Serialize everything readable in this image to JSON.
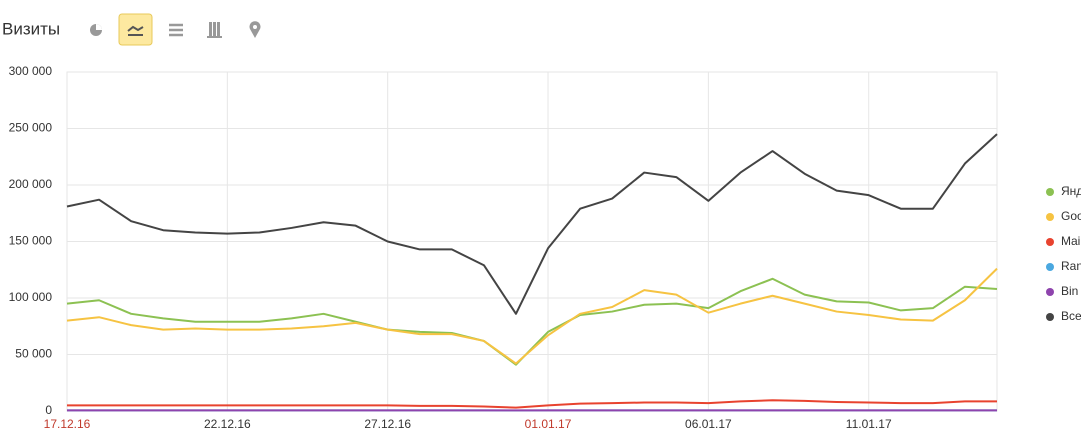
{
  "chart_data": {
    "type": "line",
    "title": "Визиты",
    "categories": [
      "17.12.16",
      null,
      null,
      null,
      null,
      "22.12.16",
      null,
      null,
      null,
      null,
      "27.12.16",
      null,
      null,
      null,
      null,
      "01.01.17",
      null,
      null,
      null,
      null,
      "06.01.17",
      null,
      null,
      null,
      null,
      "11.01.17",
      null,
      null,
      null,
      null
    ],
    "highlighted_categories": [
      "17.12.16",
      "01.01.17"
    ],
    "highlight_color": "#c0392b",
    "series": [
      {
        "name": "Янд",
        "color": "#8cc152",
        "values": [
          95000,
          98000,
          86000,
          82000,
          79000,
          79000,
          79000,
          82000,
          86000,
          79000,
          72000,
          70000,
          69000,
          62000,
          41000,
          70000,
          85000,
          88000,
          94000,
          95000,
          91000,
          106000,
          117000,
          103000,
          97000,
          96000,
          89000,
          91000,
          110000,
          108000
        ]
      },
      {
        "name": "Goo",
        "color": "#f6c342",
        "values": [
          80000,
          83000,
          76000,
          72000,
          73000,
          72000,
          72000,
          73000,
          75000,
          78000,
          72000,
          68000,
          68000,
          62000,
          42000,
          67000,
          86000,
          92000,
          107000,
          103000,
          87000,
          95000,
          102000,
          95000,
          88000,
          85000,
          81000,
          80000,
          98000,
          126000
        ]
      },
      {
        "name": "Mai",
        "color": "#e8432f",
        "values": [
          5000,
          5000,
          5000,
          5000,
          5000,
          5000,
          5000,
          5000,
          5000,
          5000,
          5000,
          4500,
          4500,
          4000,
          3000,
          5000,
          6500,
          7000,
          7500,
          7500,
          7000,
          8500,
          9500,
          9000,
          8000,
          7500,
          7000,
          7000,
          8500,
          8500
        ]
      },
      {
        "name": "Ran",
        "color": "#4aa8e0",
        "values": [
          500,
          500,
          500,
          500,
          500,
          500,
          500,
          500,
          500,
          500,
          500,
          500,
          500,
          500,
          400,
          500,
          500,
          500,
          500,
          500,
          500,
          500,
          500,
          500,
          500,
          500,
          500,
          500,
          500,
          500
        ]
      },
      {
        "name": "Bin",
        "color": "#8e44ad",
        "values": [
          600,
          600,
          600,
          600,
          600,
          600,
          600,
          600,
          600,
          600,
          600,
          600,
          600,
          600,
          500,
          600,
          600,
          600,
          600,
          600,
          600,
          600,
          600,
          600,
          600,
          600,
          600,
          600,
          600,
          600
        ]
      },
      {
        "name": "Все",
        "color": "#444444",
        "values": [
          181000,
          187000,
          168000,
          160000,
          158000,
          157000,
          158000,
          162000,
          167000,
          164000,
          150000,
          143000,
          143000,
          129000,
          86000,
          144000,
          179000,
          188000,
          211000,
          207000,
          186000,
          211000,
          230000,
          210000,
          195000,
          191000,
          179000,
          179000,
          219000,
          245000
        ]
      }
    ],
    "ylim": [
      0,
      300000
    ],
    "yticks": [
      0,
      {
        "value": 50000,
        "label": "50 000"
      },
      {
        "value": 100000,
        "label": "100 000"
      },
      {
        "value": 150000,
        "label": "150 000"
      },
      {
        "value": 200000,
        "label": "200 000"
      },
      {
        "value": 250000,
        "label": "250 000"
      },
      {
        "value": 300000,
        "label": "300 000"
      }
    ],
    "grid": true
  }
}
